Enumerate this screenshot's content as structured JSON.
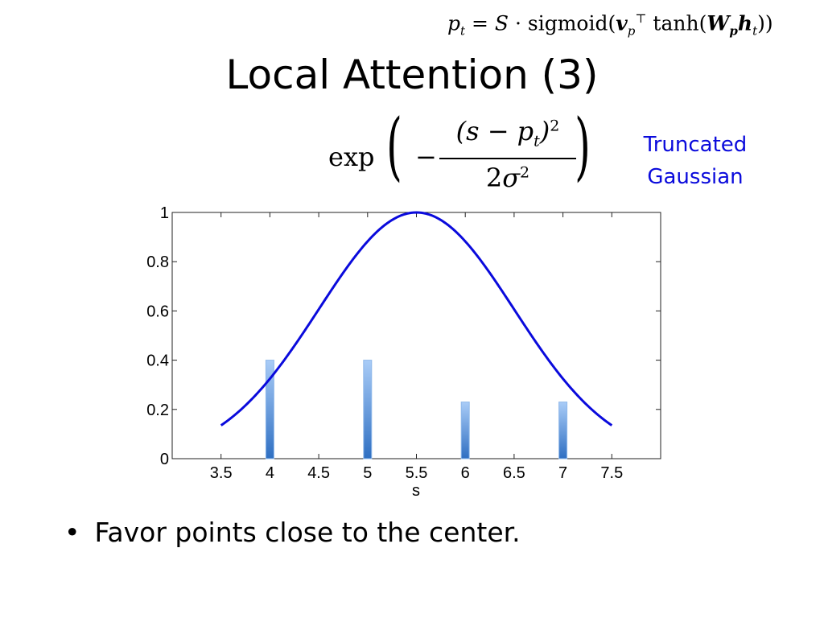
{
  "slide": {
    "title": "Local Attention (3)",
    "formula_top": "p_t = S · sigmoid(v_p^T tanh(W_p h_t))",
    "formula_main": "exp(−(s − p_t)^2 / 2σ^2)",
    "annotation": [
      "Truncated",
      "Gaussian"
    ],
    "bullets": [
      "Favor points close to the center."
    ]
  },
  "colors": {
    "curve": "#0a0adc",
    "bar_top": "#a9ccf7",
    "bar_bottom": "#2f6fc2",
    "annotation": "#0a0adc"
  },
  "chart_data": {
    "type": "line",
    "title": "",
    "xlabel": "s",
    "ylabel": "",
    "xlim": [
      3,
      8
    ],
    "ylim": [
      0,
      1
    ],
    "x_ticks": [
      "3.5",
      "4",
      "4.5",
      "5",
      "5.5",
      "6",
      "6.5",
      "7",
      "7.5"
    ],
    "y_ticks": [
      "0",
      "0.2",
      "0.4",
      "0.6",
      "0.8",
      "1"
    ],
    "grid": false,
    "series": [
      {
        "type": "curve",
        "function": "gaussian",
        "mean": 5.5,
        "sigma": 1.0,
        "x_range": [
          3.5,
          7.5
        ]
      },
      {
        "type": "bar",
        "x": [
          4,
          5,
          6,
          7
        ],
        "values": [
          0.4,
          0.4,
          0.23,
          0.23
        ]
      }
    ]
  }
}
